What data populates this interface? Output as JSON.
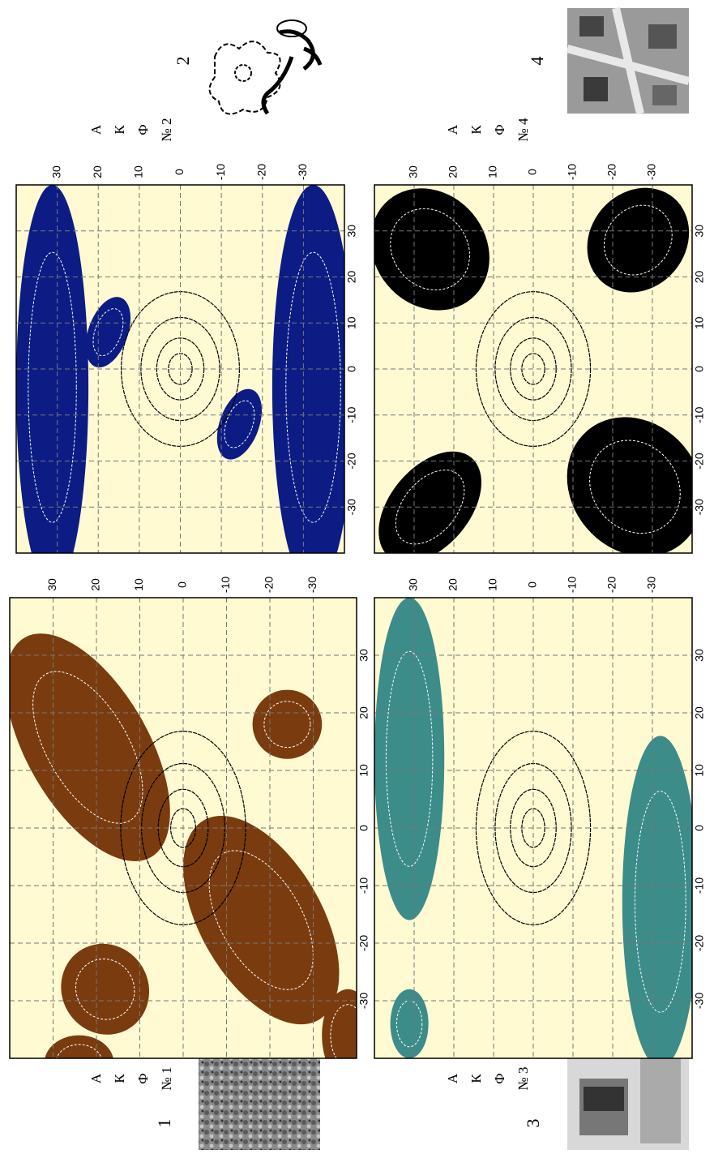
{
  "panels": [
    {
      "caption": "1",
      "label": [
        "А",
        "К",
        "Ф",
        "№ 1"
      ],
      "xlim": [
        40,
        -40
      ],
      "ylim": [
        -40,
        40
      ],
      "xticks": [
        30,
        20,
        10,
        0,
        -10,
        -20,
        -30
      ],
      "yticks": [
        30,
        20,
        10,
        0,
        -10,
        -20,
        -30
      ],
      "color": "#7a3c0e"
    },
    {
      "caption": "2",
      "label": [
        "А",
        "К",
        "Ф",
        "№ 2"
      ],
      "xlim": [
        40,
        -40
      ],
      "ylim": [
        -40,
        40
      ],
      "xticks": [
        30,
        20,
        10,
        0,
        -10,
        -20,
        -30
      ],
      "yticks": [
        30,
        20,
        10,
        0,
        -10,
        -20,
        -30
      ],
      "color": "#0c1c84"
    },
    {
      "caption": "3",
      "label": [
        "А",
        "К",
        "Ф",
        "№ 3"
      ],
      "xlim": [
        40,
        -40
      ],
      "ylim": [
        -40,
        40
      ],
      "xticks": [
        30,
        20,
        10,
        0,
        -10,
        -20,
        -30
      ],
      "yticks": [
        30,
        20,
        10,
        0,
        -10,
        -20,
        -30
      ],
      "color": "#3c8c8a"
    },
    {
      "caption": "4",
      "label": [
        "А",
        "К",
        "Ф",
        "№ 4"
      ],
      "xlim": [
        40,
        -40
      ],
      "ylim": [
        -40,
        40
      ],
      "xticks": [
        30,
        20,
        10,
        0,
        -10,
        -20,
        -30
      ],
      "yticks": [
        30,
        20,
        10,
        0,
        -10,
        -20,
        -30
      ],
      "color": "#000000"
    }
  ]
}
